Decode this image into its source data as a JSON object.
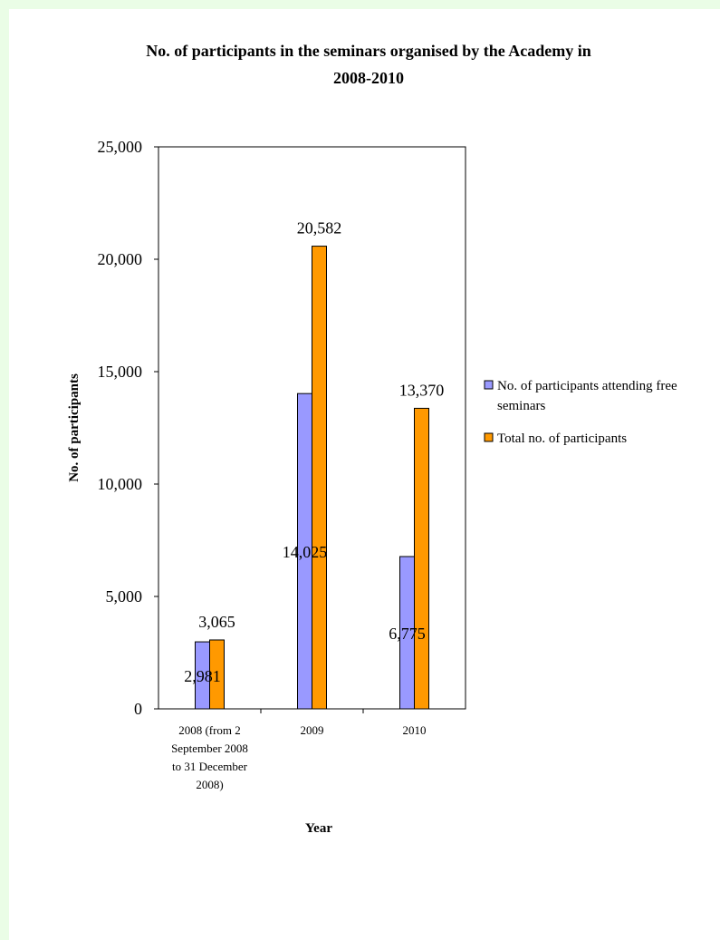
{
  "chart_data": {
    "type": "bar",
    "title_lines": [
      "No. of participants in the seminars organised by the Academy in",
      "2008-2010"
    ],
    "xlabel": "Year",
    "ylabel": "No. of participants",
    "ylim": [
      0,
      25000
    ],
    "yticks": [
      "0",
      "5,000",
      "10,000",
      "15,000",
      "20,000",
      "25,000"
    ],
    "ytick_values": [
      0,
      5000,
      10000,
      15000,
      20000,
      25000
    ],
    "categories": [
      [
        "2008 (from 2",
        "September 2008",
        "to 31 December",
        "2008)"
      ],
      [
        "2009"
      ],
      [
        "2010"
      ]
    ],
    "series": [
      {
        "name": "No. of participants attending free seminars",
        "legend_lines": [
          "No. of participants attending free",
          "seminars"
        ],
        "color": "#9999ff",
        "values": [
          2981,
          14025,
          6775
        ],
        "labels": [
          "2,981",
          "14,025",
          "6,775"
        ]
      },
      {
        "name": "Total no. of participants",
        "legend_lines": [
          "Total no. of participants"
        ],
        "color": "#ff9900",
        "values": [
          3065,
          20582,
          13370
        ],
        "labels": [
          "3,065",
          "20,582",
          "13,370"
        ]
      }
    ],
    "legend_position": "right",
    "grid": false
  }
}
